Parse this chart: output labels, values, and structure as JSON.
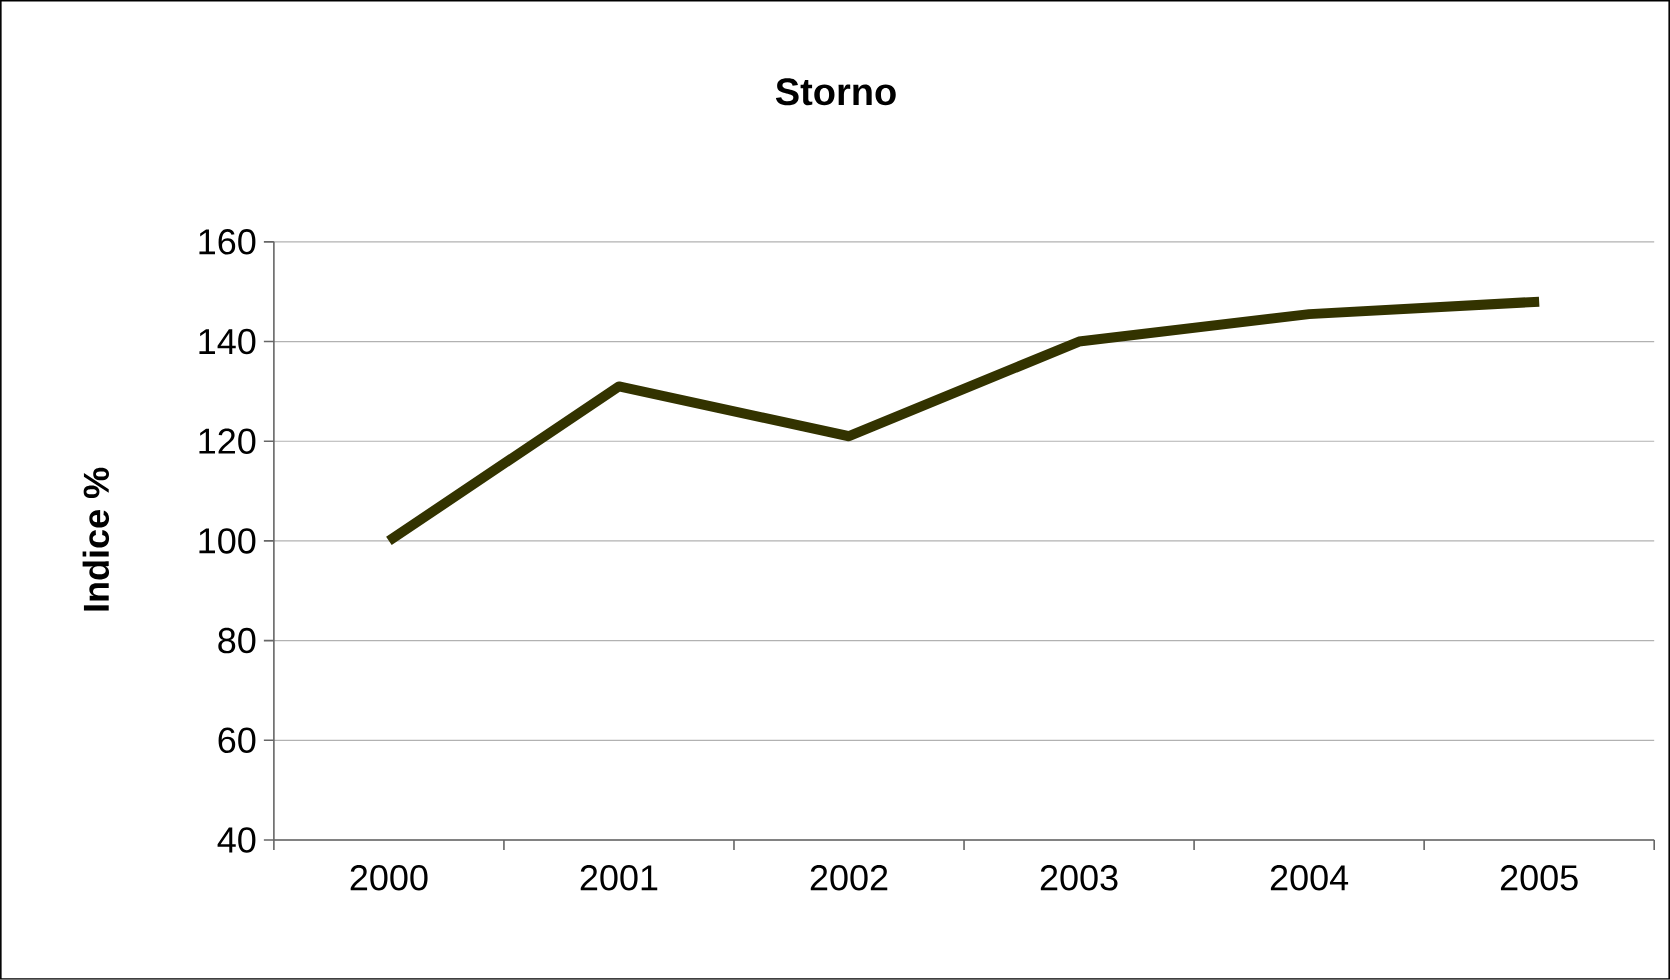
{
  "chart_data": {
    "type": "line",
    "title": "Storno",
    "ylabel": "Indice %",
    "categories": [
      "2000",
      "2001",
      "2002",
      "2003",
      "2004",
      "2005"
    ],
    "values": [
      100,
      131,
      121,
      140,
      145.5,
      148
    ],
    "color": "#333300",
    "ylim": [
      40,
      160
    ],
    "yticks": [
      40,
      60,
      80,
      100,
      120,
      140,
      160
    ],
    "grid": "y",
    "marker": "none",
    "line_style": "solid"
  }
}
